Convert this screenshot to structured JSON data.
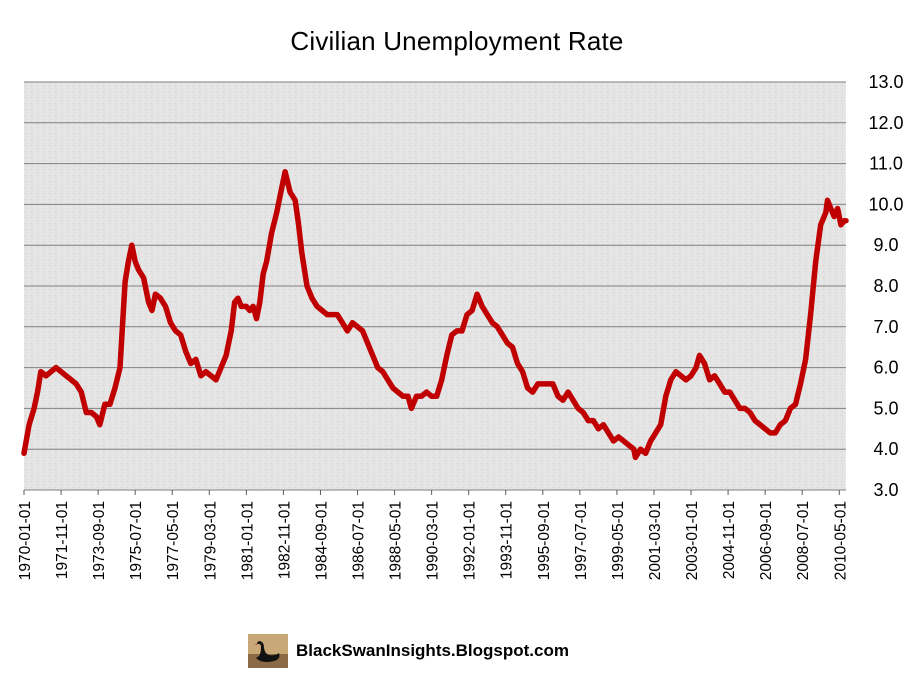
{
  "footer": {
    "text": "BlackSwanInsights.Blogspot.com",
    "logo": "black-swan-logo"
  },
  "chart_data": {
    "type": "line",
    "title": "Civilian Unemployment Rate",
    "xlabel": "",
    "ylabel": "",
    "ylim": [
      3.0,
      13.0
    ],
    "yticks": [
      "3.0",
      "4.0",
      "5.0",
      "6.0",
      "7.0",
      "8.0",
      "9.0",
      "10.0",
      "11.0",
      "12.0",
      "13.0"
    ],
    "y_axis_side": "right",
    "xlim": [
      "1970-01-01",
      "2010-09-01"
    ],
    "xticks": [
      "1970-01-01",
      "1971-11-01",
      "1973-09-01",
      "1975-07-01",
      "1977-05-01",
      "1979-03-01",
      "1981-01-01",
      "1982-11-01",
      "1984-09-01",
      "1986-07-01",
      "1988-05-01",
      "1990-03-01",
      "1992-01-01",
      "1993-11-01",
      "1995-09-01",
      "1997-07-01",
      "1999-05-01",
      "2001-03-01",
      "2003-01-01",
      "2004-11-01",
      "2006-09-01",
      "2008-07-01",
      "2010-05-01"
    ],
    "grid": true,
    "colors": {
      "line": "#c00000",
      "plot_background": "#e6e6e6",
      "grid": "#7f7f7f"
    },
    "series": [
      {
        "points": [
          [
            "1970-01-01",
            3.9
          ],
          [
            "1970-04-01",
            4.6
          ],
          [
            "1970-07-01",
            5.0
          ],
          [
            "1970-09-01",
            5.4
          ],
          [
            "1970-11-01",
            5.9
          ],
          [
            "1971-02-01",
            5.8
          ],
          [
            "1971-05-01",
            5.9
          ],
          [
            "1971-08-01",
            6.0
          ],
          [
            "1971-11-01",
            5.9
          ],
          [
            "1972-02-01",
            5.8
          ],
          [
            "1972-05-01",
            5.7
          ],
          [
            "1972-08-01",
            5.6
          ],
          [
            "1972-11-01",
            5.4
          ],
          [
            "1973-02-01",
            4.9
          ],
          [
            "1973-05-01",
            4.9
          ],
          [
            "1973-08-01",
            4.8
          ],
          [
            "1973-10-01",
            4.6
          ],
          [
            "1974-01-01",
            5.1
          ],
          [
            "1974-04-01",
            5.1
          ],
          [
            "1974-07-01",
            5.5
          ],
          [
            "1974-10-01",
            6.0
          ],
          [
            "1975-01-01",
            8.1
          ],
          [
            "1975-03-01",
            8.6
          ],
          [
            "1975-05-01",
            9.0
          ],
          [
            "1975-07-01",
            8.6
          ],
          [
            "1975-09-01",
            8.4
          ],
          [
            "1975-12-01",
            8.2
          ],
          [
            "1976-03-01",
            7.6
          ],
          [
            "1976-05-01",
            7.4
          ],
          [
            "1976-07-01",
            7.8
          ],
          [
            "1976-10-01",
            7.7
          ],
          [
            "1977-01-01",
            7.5
          ],
          [
            "1977-04-01",
            7.1
          ],
          [
            "1977-07-01",
            6.9
          ],
          [
            "1977-10-01",
            6.8
          ],
          [
            "1978-01-01",
            6.4
          ],
          [
            "1978-04-01",
            6.1
          ],
          [
            "1978-07-01",
            6.2
          ],
          [
            "1978-10-01",
            5.8
          ],
          [
            "1979-01-01",
            5.9
          ],
          [
            "1979-04-01",
            5.8
          ],
          [
            "1979-07-01",
            5.7
          ],
          [
            "1979-10-01",
            6.0
          ],
          [
            "1980-01-01",
            6.3
          ],
          [
            "1980-04-01",
            6.9
          ],
          [
            "1980-06-01",
            7.6
          ],
          [
            "1980-08-01",
            7.7
          ],
          [
            "1980-10-01",
            7.5
          ],
          [
            "1981-01-01",
            7.5
          ],
          [
            "1981-03-01",
            7.4
          ],
          [
            "1981-05-01",
            7.5
          ],
          [
            "1981-07-01",
            7.2
          ],
          [
            "1981-09-01",
            7.6
          ],
          [
            "1981-11-01",
            8.3
          ],
          [
            "1982-01-01",
            8.6
          ],
          [
            "1982-04-01",
            9.3
          ],
          [
            "1982-07-01",
            9.8
          ],
          [
            "1982-10-01",
            10.4
          ],
          [
            "1982-12-01",
            10.8
          ],
          [
            "1983-03-01",
            10.3
          ],
          [
            "1983-06-01",
            10.1
          ],
          [
            "1983-08-01",
            9.5
          ],
          [
            "1983-10-01",
            8.8
          ],
          [
            "1984-01-01",
            8.0
          ],
          [
            "1984-04-01",
            7.7
          ],
          [
            "1984-07-01",
            7.5
          ],
          [
            "1984-10-01",
            7.4
          ],
          [
            "1985-01-01",
            7.3
          ],
          [
            "1985-04-01",
            7.3
          ],
          [
            "1985-07-01",
            7.3
          ],
          [
            "1985-10-01",
            7.1
          ],
          [
            "1986-01-01",
            6.9
          ],
          [
            "1986-04-01",
            7.1
          ],
          [
            "1986-07-01",
            7.0
          ],
          [
            "1986-10-01",
            6.9
          ],
          [
            "1987-01-01",
            6.6
          ],
          [
            "1987-04-01",
            6.3
          ],
          [
            "1987-07-01",
            6.0
          ],
          [
            "1987-10-01",
            5.9
          ],
          [
            "1988-01-01",
            5.7
          ],
          [
            "1988-04-01",
            5.5
          ],
          [
            "1988-07-01",
            5.4
          ],
          [
            "1988-10-01",
            5.3
          ],
          [
            "1989-01-01",
            5.3
          ],
          [
            "1989-03-01",
            5.0
          ],
          [
            "1989-06-01",
            5.3
          ],
          [
            "1989-09-01",
            5.3
          ],
          [
            "1989-12-01",
            5.4
          ],
          [
            "1990-03-01",
            5.3
          ],
          [
            "1990-06-01",
            5.3
          ],
          [
            "1990-09-01",
            5.7
          ],
          [
            "1990-12-01",
            6.3
          ],
          [
            "1991-03-01",
            6.8
          ],
          [
            "1991-06-01",
            6.9
          ],
          [
            "1991-09-01",
            6.9
          ],
          [
            "1991-12-01",
            7.3
          ],
          [
            "1992-03-01",
            7.4
          ],
          [
            "1992-06-01",
            7.8
          ],
          [
            "1992-09-01",
            7.5
          ],
          [
            "1992-12-01",
            7.3
          ],
          [
            "1993-03-01",
            7.1
          ],
          [
            "1993-06-01",
            7.0
          ],
          [
            "1993-09-01",
            6.8
          ],
          [
            "1993-12-01",
            6.6
          ],
          [
            "1994-03-01",
            6.5
          ],
          [
            "1994-06-01",
            6.1
          ],
          [
            "1994-09-01",
            5.9
          ],
          [
            "1994-12-01",
            5.5
          ],
          [
            "1995-03-01",
            5.4
          ],
          [
            "1995-06-01",
            5.6
          ],
          [
            "1995-09-01",
            5.6
          ],
          [
            "1995-12-01",
            5.6
          ],
          [
            "1996-03-01",
            5.6
          ],
          [
            "1996-06-01",
            5.3
          ],
          [
            "1996-09-01",
            5.2
          ],
          [
            "1996-12-01",
            5.4
          ],
          [
            "1997-03-01",
            5.2
          ],
          [
            "1997-06-01",
            5.0
          ],
          [
            "1997-09-01",
            4.9
          ],
          [
            "1997-12-01",
            4.7
          ],
          [
            "1998-03-01",
            4.7
          ],
          [
            "1998-06-01",
            4.5
          ],
          [
            "1998-09-01",
            4.6
          ],
          [
            "1998-12-01",
            4.4
          ],
          [
            "1999-03-01",
            4.2
          ],
          [
            "1999-06-01",
            4.3
          ],
          [
            "1999-09-01",
            4.2
          ],
          [
            "1999-12-01",
            4.1
          ],
          [
            "2000-03-01",
            4.0
          ],
          [
            "2000-04-01",
            3.8
          ],
          [
            "2000-07-01",
            4.0
          ],
          [
            "2000-10-01",
            3.9
          ],
          [
            "2001-01-01",
            4.2
          ],
          [
            "2001-04-01",
            4.4
          ],
          [
            "2001-07-01",
            4.6
          ],
          [
            "2001-10-01",
            5.3
          ],
          [
            "2002-01-01",
            5.7
          ],
          [
            "2002-04-01",
            5.9
          ],
          [
            "2002-07-01",
            5.8
          ],
          [
            "2002-10-01",
            5.7
          ],
          [
            "2003-01-01",
            5.8
          ],
          [
            "2003-04-01",
            6.0
          ],
          [
            "2003-06-01",
            6.3
          ],
          [
            "2003-09-01",
            6.1
          ],
          [
            "2003-12-01",
            5.7
          ],
          [
            "2004-03-01",
            5.8
          ],
          [
            "2004-06-01",
            5.6
          ],
          [
            "2004-09-01",
            5.4
          ],
          [
            "2004-12-01",
            5.4
          ],
          [
            "2005-03-01",
            5.2
          ],
          [
            "2005-06-01",
            5.0
          ],
          [
            "2005-09-01",
            5.0
          ],
          [
            "2005-12-01",
            4.9
          ],
          [
            "2006-03-01",
            4.7
          ],
          [
            "2006-06-01",
            4.6
          ],
          [
            "2006-09-01",
            4.5
          ],
          [
            "2006-12-01",
            4.4
          ],
          [
            "2007-03-01",
            4.4
          ],
          [
            "2007-06-01",
            4.6
          ],
          [
            "2007-09-01",
            4.7
          ],
          [
            "2007-12-01",
            5.0
          ],
          [
            "2008-03-01",
            5.1
          ],
          [
            "2008-06-01",
            5.6
          ],
          [
            "2008-09-01",
            6.2
          ],
          [
            "2008-12-01",
            7.3
          ],
          [
            "2009-03-01",
            8.6
          ],
          [
            "2009-06-01",
            9.5
          ],
          [
            "2009-09-01",
            9.8
          ],
          [
            "2009-10-01",
            10.1
          ],
          [
            "2009-12-01",
            9.9
          ],
          [
            "2010-02-01",
            9.7
          ],
          [
            "2010-04-01",
            9.9
          ],
          [
            "2010-06-01",
            9.5
          ],
          [
            "2010-08-01",
            9.6
          ],
          [
            "2010-09-01",
            9.6
          ]
        ]
      }
    ]
  }
}
